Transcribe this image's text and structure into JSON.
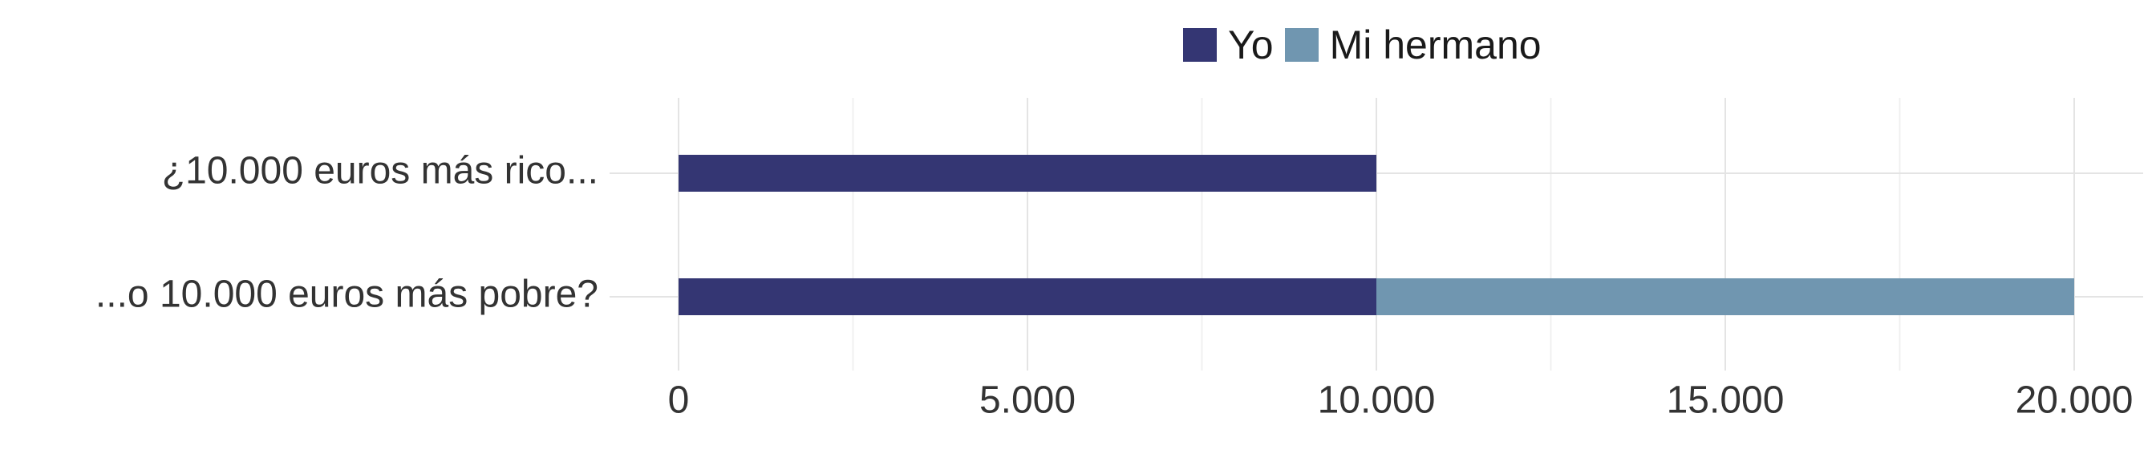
{
  "chart_data": {
    "type": "bar",
    "orientation": "horizontal",
    "stacked": true,
    "categories": [
      "¿10.000 euros más rico...",
      "...o 10.000 euros más pobre?"
    ],
    "series": [
      {
        "name": "Yo",
        "color": "#343673",
        "values": [
          10000,
          10000
        ]
      },
      {
        "name": "Mi hermano",
        "color": "#7096b0",
        "values": [
          0,
          10000
        ]
      }
    ],
    "x_ticks": [
      0,
      5000,
      10000,
      15000,
      20000
    ],
    "x_tick_labels": [
      "0",
      "5.000",
      "10.000",
      "15.000",
      "20.000"
    ],
    "xlim": [
      -1000,
      21000
    ],
    "grid": true,
    "legend_position": "top",
    "title": "",
    "xlabel": "",
    "ylabel": ""
  }
}
